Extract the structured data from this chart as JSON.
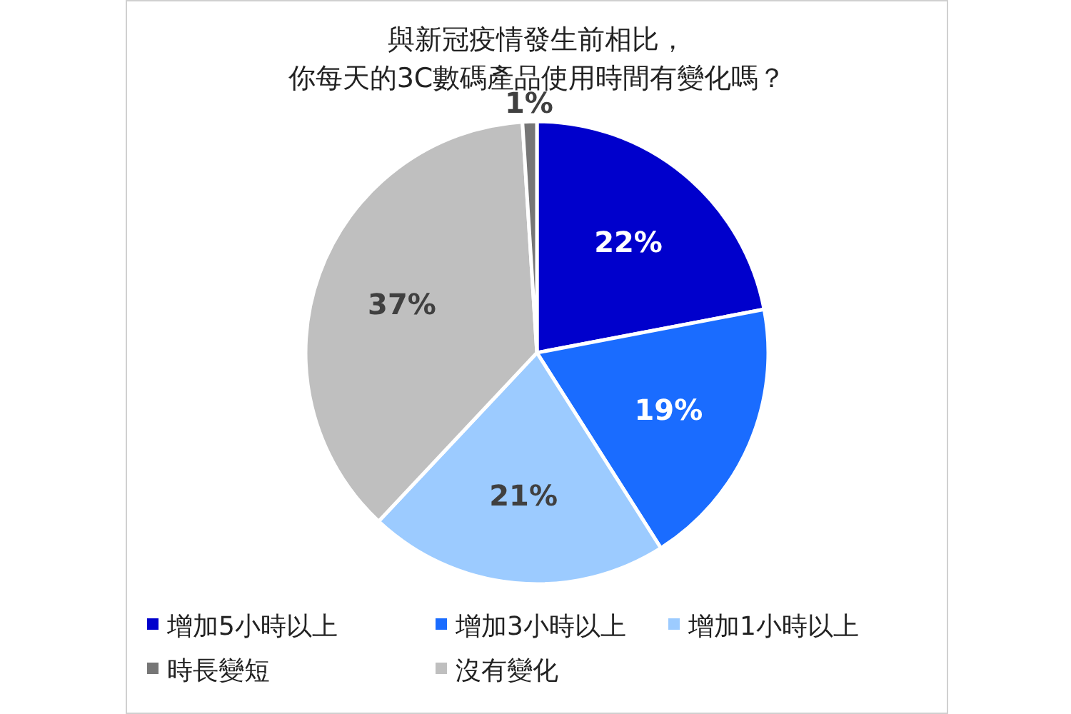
{
  "chart_data": {
    "type": "pie",
    "title": "與新冠疫情發生前相比，你每天的3C數碼產品使用時間有變化嗎？",
    "categories": [
      "增加5小時以上",
      "增加3小時以上",
      "增加1小時以上",
      "時長變短",
      "沒有變化"
    ],
    "values": [
      22,
      19,
      21,
      1,
      37
    ],
    "colors": [
      "#0000cc",
      "#1a6cff",
      "#9ccbff",
      "#767676",
      "#bfbfbf"
    ],
    "value_labels": [
      "22%",
      "19%",
      "21%",
      "1%",
      "37%"
    ],
    "legend": "bottom"
  }
}
